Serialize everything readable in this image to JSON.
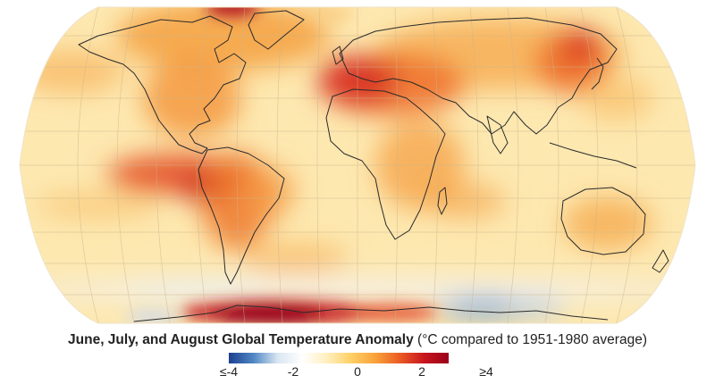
{
  "caption": {
    "title": "June, July, and August Global Temperature Anomaly",
    "subtitle": "(°C compared to 1951-1980 average)"
  },
  "colorbar": {
    "ticks": [
      "≤-4",
      "-2",
      "0",
      "2",
      "≥4"
    ],
    "colors": [
      "#1b3f8f",
      "#4f86c4",
      "#d9e6f2",
      "#ffffff",
      "#fff0c0",
      "#ffd067",
      "#f8a23a",
      "#ea5b24",
      "#c8141c",
      "#99001a"
    ]
  },
  "map": {
    "projection": "Robinson",
    "ocean_base_color": "#fde8b0",
    "coastline_color": "#2a2a2a",
    "graticule_color": "#c9b48e"
  }
}
